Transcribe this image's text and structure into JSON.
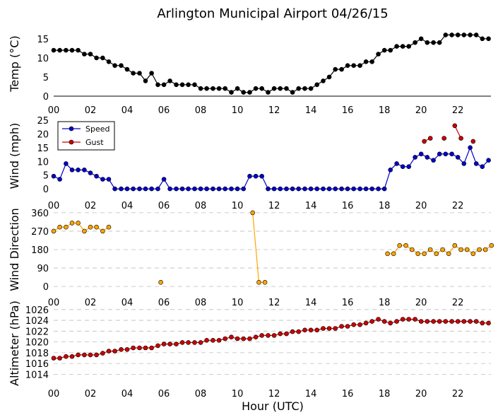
{
  "figure": {
    "title": "Arlington Municipal Airport 04/26/15",
    "xlabel": "Hour (UTC)"
  },
  "chart_data": [
    {
      "type": "line",
      "id": "temp",
      "ylabel": "Temp (°C)",
      "xlim": [
        0,
        23.8
      ],
      "ylim": [
        0,
        17
      ],
      "yticks": [
        0,
        5,
        10,
        15
      ],
      "xticks": [
        "00",
        "02",
        "04",
        "06",
        "08",
        "10",
        "12",
        "14",
        "16",
        "18",
        "20",
        "22"
      ],
      "grid": false,
      "series": [
        {
          "name": "Temp",
          "color": "#000000",
          "x": [
            0.0,
            0.33,
            0.67,
            1.0,
            1.33,
            1.67,
            2.0,
            2.33,
            2.67,
            3.0,
            3.33,
            3.67,
            4.0,
            4.33,
            4.67,
            5.0,
            5.33,
            5.67,
            6.0,
            6.33,
            6.67,
            7.0,
            7.33,
            7.67,
            8.0,
            8.33,
            8.67,
            9.0,
            9.33,
            9.67,
            10.0,
            10.33,
            10.67,
            11.0,
            11.33,
            11.67,
            12.0,
            12.33,
            12.67,
            13.0,
            13.33,
            13.67,
            14.0,
            14.33,
            14.67,
            15.0,
            15.33,
            15.67,
            16.0,
            16.33,
            16.67,
            17.0,
            17.33,
            17.67,
            18.0,
            18.33,
            18.67,
            19.0,
            19.33,
            19.67,
            20.0,
            20.33,
            20.67,
            21.0,
            21.33,
            21.67,
            22.0,
            22.33,
            22.67,
            23.0,
            23.33,
            23.67
          ],
          "y": [
            12,
            12,
            12,
            12,
            12,
            11,
            11,
            10,
            10,
            9,
            8,
            8,
            7,
            6,
            6,
            4,
            6,
            3,
            3,
            4,
            3,
            3,
            3,
            3,
            2,
            2,
            2,
            2,
            2,
            1,
            2,
            1,
            1,
            2,
            2,
            1,
            2,
            2,
            2,
            1,
            2,
            2,
            2,
            3,
            4,
            5,
            7,
            7,
            8,
            8,
            8,
            9,
            9,
            11,
            12,
            12,
            13,
            13,
            13,
            14,
            15,
            14,
            14,
            14,
            16,
            16,
            16,
            16,
            16,
            16,
            15,
            15
          ]
        }
      ]
    },
    {
      "type": "line",
      "id": "wind",
      "ylabel": "Wind (mph)",
      "xlim": [
        0,
        23.8
      ],
      "ylim": [
        -1,
        25
      ],
      "yticks": [
        0,
        5,
        10,
        15,
        20,
        25
      ],
      "xticks": [
        "00",
        "02",
        "04",
        "06",
        "08",
        "10",
        "12",
        "14",
        "16",
        "18",
        "20",
        "22"
      ],
      "grid": false,
      "legend": {
        "position": "top-left",
        "entries": [
          "Speed",
          "Gust"
        ]
      },
      "series": [
        {
          "name": "Speed",
          "color": "#0000cc",
          "x": [
            0.0,
            0.33,
            0.67,
            1.0,
            1.33,
            1.67,
            2.0,
            2.33,
            2.67,
            3.0,
            3.33,
            3.67,
            4.0,
            4.33,
            4.67,
            5.0,
            5.33,
            5.67,
            6.0,
            6.33,
            6.67,
            7.0,
            7.33,
            7.67,
            8.0,
            8.33,
            8.67,
            9.0,
            9.33,
            9.67,
            10.0,
            10.33,
            10.67,
            11.0,
            11.33,
            11.67,
            12.0,
            12.33,
            12.67,
            13.0,
            13.33,
            13.67,
            14.0,
            14.33,
            14.67,
            15.0,
            15.33,
            15.67,
            16.0,
            16.33,
            16.67,
            17.0,
            17.33,
            17.67,
            18.0,
            18.33,
            18.67,
            19.0,
            19.33,
            19.67,
            20.0,
            20.33,
            20.67,
            21.0,
            21.33,
            21.67,
            22.0,
            22.33,
            22.67,
            23.0,
            23.33,
            23.67
          ],
          "y": [
            4.6,
            3.5,
            9.2,
            6.9,
            6.9,
            6.9,
            5.8,
            4.6,
            3.5,
            3.5,
            0,
            0,
            0,
            0,
            0,
            0,
            0,
            0,
            3.5,
            0,
            0,
            0,
            0,
            0,
            0,
            0,
            0,
            0,
            0,
            0,
            0,
            0,
            4.6,
            4.6,
            4.6,
            0,
            0,
            0,
            0,
            0,
            0,
            0,
            0,
            0,
            0,
            0,
            0,
            0,
            0,
            0,
            0,
            0,
            0,
            0,
            0,
            6.9,
            9.2,
            8.1,
            8.1,
            11.5,
            12.7,
            11.5,
            10.4,
            12.7,
            12.7,
            12.7,
            11.5,
            9.2,
            15,
            9.2,
            8.1,
            10.4
          ]
        },
        {
          "name": "Gust",
          "color": "#cc0000",
          "segments": [
            {
              "x": [
                20.17,
                20.5
              ],
              "y": [
                17.3,
                18.4
              ]
            },
            {
              "x": [
                21.25
              ],
              "y": [
                18.4
              ]
            },
            {
              "x": [
                21.83,
                22.17
              ],
              "y": [
                23.0,
                18.4
              ]
            },
            {
              "x": [
                22.83
              ],
              "y": [
                17.3
              ]
            }
          ]
        }
      ]
    },
    {
      "type": "line",
      "id": "wdir",
      "ylabel": "Wind Direction",
      "xlim": [
        0,
        23.8
      ],
      "ylim": [
        -10,
        370
      ],
      "yticks": [
        0,
        90,
        180,
        270,
        360
      ],
      "xticks": [
        "00",
        "02",
        "04",
        "06",
        "08",
        "10",
        "12",
        "14",
        "16",
        "18",
        "20",
        "22"
      ],
      "grid": true,
      "series": [
        {
          "name": "Direction",
          "color": "#ffa500",
          "segments": [
            {
              "x": [
                0.0,
                0.33,
                0.67,
                1.0,
                1.33,
                1.67,
                2.0,
                2.33,
                2.67,
                3.0
              ],
              "y": [
                270,
                290,
                290,
                310,
                310,
                270,
                290,
                290,
                270,
                290
              ]
            },
            {
              "x": [
                5.83
              ],
              "y": [
                20
              ]
            },
            {
              "x": [
                10.83,
                11.17,
                11.5
              ],
              "y": [
                360,
                20,
                20
              ]
            },
            {
              "x": [
                18.17,
                18.5,
                18.83,
                19.17,
                19.5,
                19.83,
                20.17,
                20.5,
                20.83,
                21.17,
                21.5,
                21.83,
                22.17,
                22.5,
                22.83,
                23.17,
                23.5,
                23.83
              ],
              "y": [
                160,
                160,
                200,
                200,
                180,
                160,
                160,
                180,
                160,
                180,
                160,
                200,
                180,
                180,
                160,
                180,
                180,
                200
              ]
            }
          ]
        }
      ]
    },
    {
      "type": "line",
      "id": "altimeter",
      "ylabel": "Altimeter (hPa)",
      "xlim": [
        0,
        23.8
      ],
      "ylim": [
        1013,
        1026.5
      ],
      "yticks": [
        1014,
        1016,
        1018,
        1020,
        1022,
        1024,
        1026
      ],
      "xticks": [
        "00",
        "02",
        "04",
        "06",
        "08",
        "10",
        "12",
        "14",
        "16",
        "18",
        "20",
        "22"
      ],
      "grid": true,
      "series": [
        {
          "name": "Altimeter",
          "color": "#cc0000",
          "x": [
            0.0,
            0.33,
            0.67,
            1.0,
            1.33,
            1.67,
            2.0,
            2.33,
            2.67,
            3.0,
            3.33,
            3.67,
            4.0,
            4.33,
            4.67,
            5.0,
            5.33,
            5.67,
            6.0,
            6.33,
            6.67,
            7.0,
            7.33,
            7.67,
            8.0,
            8.33,
            8.67,
            9.0,
            9.33,
            9.67,
            10.0,
            10.33,
            10.67,
            11.0,
            11.33,
            11.67,
            12.0,
            12.33,
            12.67,
            13.0,
            13.33,
            13.67,
            14.0,
            14.33,
            14.67,
            15.0,
            15.33,
            15.67,
            16.0,
            16.33,
            16.67,
            17.0,
            17.33,
            17.67,
            18.0,
            18.33,
            18.67,
            19.0,
            19.33,
            19.67,
            20.0,
            20.33,
            20.67,
            21.0,
            21.33,
            21.67,
            22.0,
            22.33,
            22.67,
            23.0,
            23.33,
            23.67
          ],
          "y": [
            1017.0,
            1017.0,
            1017.3,
            1017.3,
            1017.6,
            1017.6,
            1017.6,
            1017.6,
            1017.9,
            1018.3,
            1018.3,
            1018.6,
            1018.6,
            1018.9,
            1018.9,
            1018.9,
            1018.9,
            1019.3,
            1019.6,
            1019.6,
            1019.6,
            1019.9,
            1019.9,
            1019.9,
            1019.9,
            1020.3,
            1020.3,
            1020.3,
            1020.6,
            1020.9,
            1020.6,
            1020.6,
            1020.6,
            1020.9,
            1021.2,
            1021.2,
            1021.2,
            1021.5,
            1021.5,
            1021.9,
            1021.9,
            1022.2,
            1022.2,
            1022.2,
            1022.5,
            1022.5,
            1022.5,
            1022.9,
            1022.9,
            1023.2,
            1023.2,
            1023.5,
            1023.8,
            1024.2,
            1023.8,
            1023.5,
            1023.8,
            1024.2,
            1024.2,
            1024.2,
            1023.8,
            1023.8,
            1023.8,
            1023.8,
            1023.8,
            1023.8,
            1023.8,
            1023.8,
            1023.8,
            1023.8,
            1023.5,
            1023.5
          ]
        }
      ]
    }
  ]
}
